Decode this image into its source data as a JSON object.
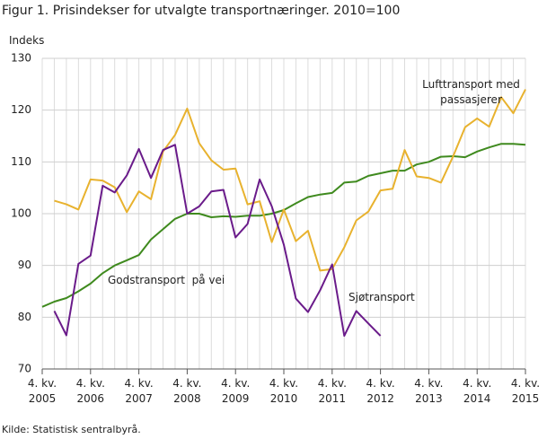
{
  "chart_data": {
    "type": "line",
    "title": "Figur 1. Prisindekser for utvalgte transportnæringer. 2010=100",
    "y_label": "Indeks",
    "source": "Kilde: Statistisk sentralbyrå.",
    "categories": [
      "4. kv. 2005",
      null,
      null,
      null,
      "4. kv. 2006",
      null,
      null,
      null,
      "4. kv. 2007",
      null,
      null,
      null,
      "4. kv. 2008",
      null,
      null,
      null,
      "4. kv. 2009",
      null,
      null,
      null,
      "4. kv. 2010",
      null,
      null,
      null,
      "4. kv. 2011",
      null,
      null,
      null,
      "4. kv. 2012",
      null,
      null,
      null,
      "4. kv. 2013",
      null,
      null,
      null,
      "4. kv. 2014",
      null,
      null,
      null,
      "4. kv. 2015"
    ],
    "ylim": [
      70,
      130
    ],
    "yticks": [
      70,
      80,
      90,
      100,
      110,
      120,
      130
    ],
    "grid": true,
    "series": [
      {
        "name": "Godstransport  på vei",
        "color": "#3f8a1e",
        "values": [
          82,
          83,
          83.7,
          85,
          86.5,
          88.5,
          90,
          91,
          92,
          95,
          97,
          99,
          100,
          100,
          99.3,
          99.5,
          99.4,
          99.6,
          99.6,
          100,
          100.7,
          102,
          103.2,
          103.7,
          104,
          106,
          106.2,
          107.3,
          107.8,
          108.3,
          108.3,
          109.5,
          110,
          111,
          111.1,
          110.9,
          112,
          112.8,
          113.5,
          113.5,
          113.3
        ]
      },
      {
        "name": "Lufttransport med passasjerer",
        "color": "#e8b22e",
        "values": [
          null,
          102.5,
          101.8,
          100.8,
          106.6,
          106.4,
          105.1,
          100.3,
          104.3,
          102.8,
          112,
          115.2,
          120.3,
          113.6,
          110.3,
          108.5,
          108.7,
          101.8,
          102.4,
          94.5,
          100.8,
          94.7,
          96.7,
          89,
          89.3,
          93.5,
          98.7,
          100.4,
          104.5,
          104.8,
          112.3,
          107.2,
          106.9,
          106,
          111,
          116.7,
          118.4,
          116.8,
          122.5,
          119.4,
          124
        ]
      },
      {
        "name": "Sjøtransport",
        "color": "#6a1b8a",
        "values": [
          null,
          81.2,
          76.5,
          90.3,
          91.9,
          105.4,
          104.1,
          107.4,
          112.5,
          106.9,
          112.3,
          113.3,
          100,
          101.4,
          104.3,
          104.6,
          95.4,
          98,
          106.6,
          101.4,
          94,
          83.6,
          81,
          85.2,
          90.2,
          76.4,
          81.2,
          78.8,
          76.4,
          null,
          null,
          null,
          null,
          null,
          null,
          null,
          null,
          null,
          null,
          null,
          null
        ]
      }
    ]
  }
}
